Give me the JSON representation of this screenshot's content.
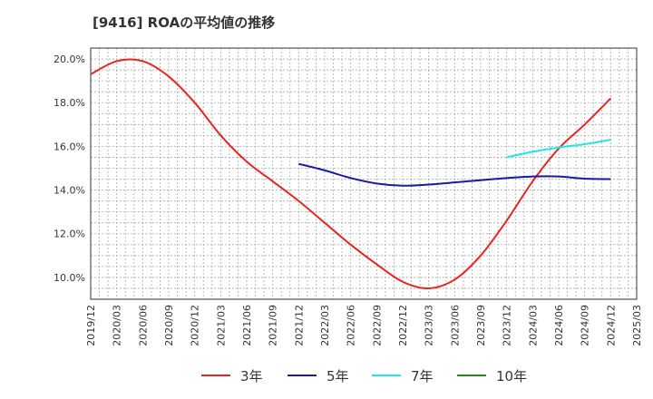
{
  "title": "[9416]  ROAの平均値の推移",
  "chart_data": {
    "type": "line",
    "title": "[9416]  ROAの平均値の推移",
    "xlabel": "",
    "ylabel": "",
    "grid": true,
    "legend_position": "bottom",
    "ylim": [
      9.0,
      20.5
    ],
    "yticks": [
      10.0,
      12.0,
      14.0,
      16.0,
      18.0,
      20.0
    ],
    "ytick_labels": [
      "10.0%",
      "12.0%",
      "14.0%",
      "16.0%",
      "18.0%",
      "20.0%"
    ],
    "xticks": [
      "2019/12",
      "2020/03",
      "2020/06",
      "2020/09",
      "2020/12",
      "2021/03",
      "2021/06",
      "2021/09",
      "2021/12",
      "2022/03",
      "2022/06",
      "2022/09",
      "2022/12",
      "2023/03",
      "2023/06",
      "2023/09",
      "2023/12",
      "2024/03",
      "2024/06",
      "2024/09",
      "2024/12",
      "2025/03"
    ],
    "series": [
      {
        "name": "3年",
        "color": "#e8251f",
        "x": [
          "2019/12",
          "2020/03",
          "2020/06",
          "2020/09",
          "2020/12",
          "2021/03",
          "2021/06",
          "2021/09",
          "2021/12",
          "2022/03",
          "2022/06",
          "2022/09",
          "2022/12",
          "2023/03",
          "2023/06",
          "2023/09",
          "2023/12",
          "2024/03",
          "2024/06",
          "2024/09",
          "2024/12"
        ],
        "values": [
          19.3,
          19.9,
          19.9,
          19.2,
          18.0,
          16.5,
          15.3,
          14.4,
          13.5,
          12.5,
          11.5,
          10.6,
          9.8,
          9.5,
          9.9,
          11.0,
          12.6,
          14.4,
          15.9,
          17.0,
          18.2
        ]
      },
      {
        "name": "5年",
        "color": "#1a1aa6",
        "x": [
          "2021/12",
          "2022/03",
          "2022/06",
          "2022/09",
          "2022/12",
          "2023/03",
          "2023/06",
          "2023/09",
          "2023/12",
          "2024/03",
          "2024/06",
          "2024/09",
          "2024/12"
        ],
        "values": [
          15.2,
          14.9,
          14.55,
          14.3,
          14.2,
          14.25,
          14.35,
          14.45,
          14.55,
          14.62,
          14.62,
          14.52,
          14.5
        ]
      },
      {
        "name": "7年",
        "color": "#22e5e5",
        "x": [
          "2023/12",
          "2024/03",
          "2024/06",
          "2024/09",
          "2024/12"
        ],
        "values": [
          15.5,
          15.75,
          15.95,
          16.1,
          16.3
        ]
      },
      {
        "name": "10年",
        "color": "#1e8c1e",
        "x": [],
        "values": []
      }
    ]
  }
}
